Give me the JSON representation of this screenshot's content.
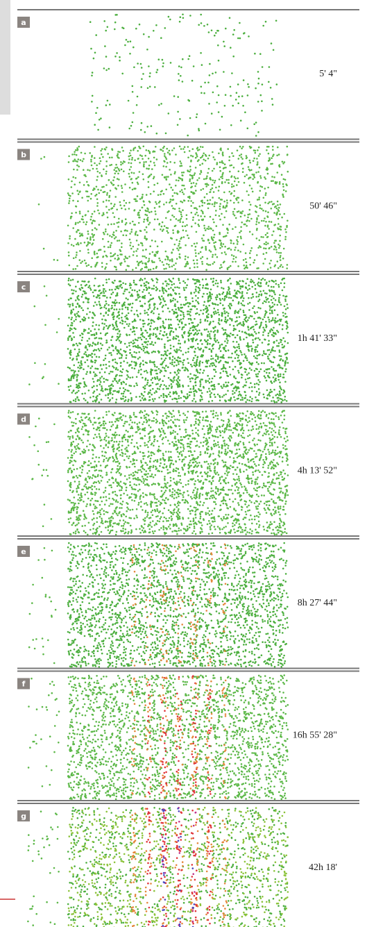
{
  "panels": [
    {
      "label": "a",
      "time": "5' 4\""
    },
    {
      "label": "b",
      "time": "50' 46\""
    },
    {
      "label": "c",
      "time": "1h 41' 33\""
    },
    {
      "label": "d",
      "time": "4h 13' 52\""
    },
    {
      "label": "e",
      "time": "8h 27' 44\""
    },
    {
      "label": "f",
      "time": "16h 55' 28\""
    },
    {
      "label": "g",
      "time": "42h 18'"
    }
  ]
}
